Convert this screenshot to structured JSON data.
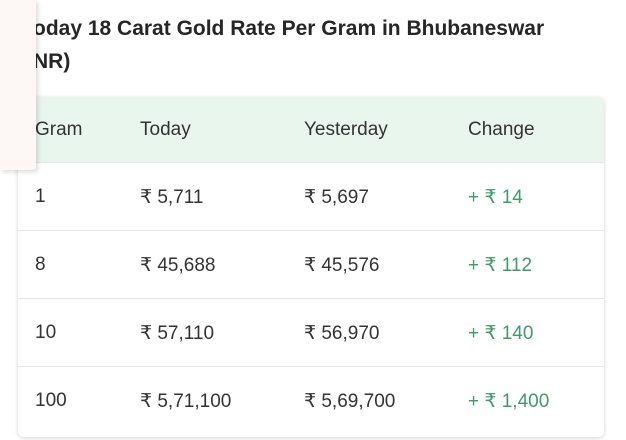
{
  "title_lines": [
    "oday 18 Carat Gold Rate Per Gram in Bhubaneswar",
    "NR)"
  ],
  "table": {
    "header": [
      "Gram",
      "Today",
      "Yesterday",
      "Change"
    ],
    "rows": [
      [
        "1",
        "₹ 5,711",
        "₹ 5,697",
        "+ ₹ 14"
      ],
      [
        "8",
        "₹ 45,688",
        "₹ 45,576",
        "+ ₹ 112"
      ],
      [
        "10",
        "₹ 57,110",
        "₹ 56,970",
        "+ ₹ 140"
      ],
      [
        "100",
        "₹ 5,71,100",
        "₹ 5,69,700",
        "+ ₹ 1,400"
      ]
    ]
  }
}
